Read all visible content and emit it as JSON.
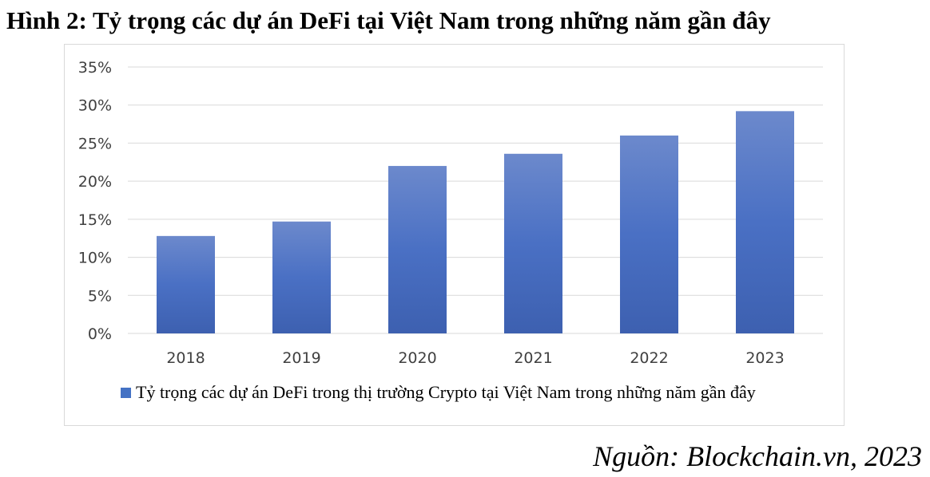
{
  "figure": {
    "title": "Hình 2: Tỷ trọng các dự án DeFi tại Việt Nam trong những năm gần đây",
    "source": "Nguồn: Blockchain.vn, 2023"
  },
  "chart_data": {
    "type": "bar",
    "categories": [
      "2018",
      "2019",
      "2020",
      "2021",
      "2022",
      "2023"
    ],
    "series": [
      {
        "name": "Tỷ trọng các dự án DeFi trong thị trường Crypto tại Việt Nam trong những năm gần đây",
        "values": [
          12.8,
          14.7,
          22.0,
          23.6,
          26.0,
          29.2
        ],
        "color": "#4472C4"
      }
    ],
    "yticks": [
      "0%",
      "5%",
      "10%",
      "15%",
      "20%",
      "25%",
      "30%",
      "35%"
    ],
    "ylim": [
      0,
      35
    ],
    "ytick_step": 5,
    "grid": true,
    "legend_position": "bottom"
  }
}
